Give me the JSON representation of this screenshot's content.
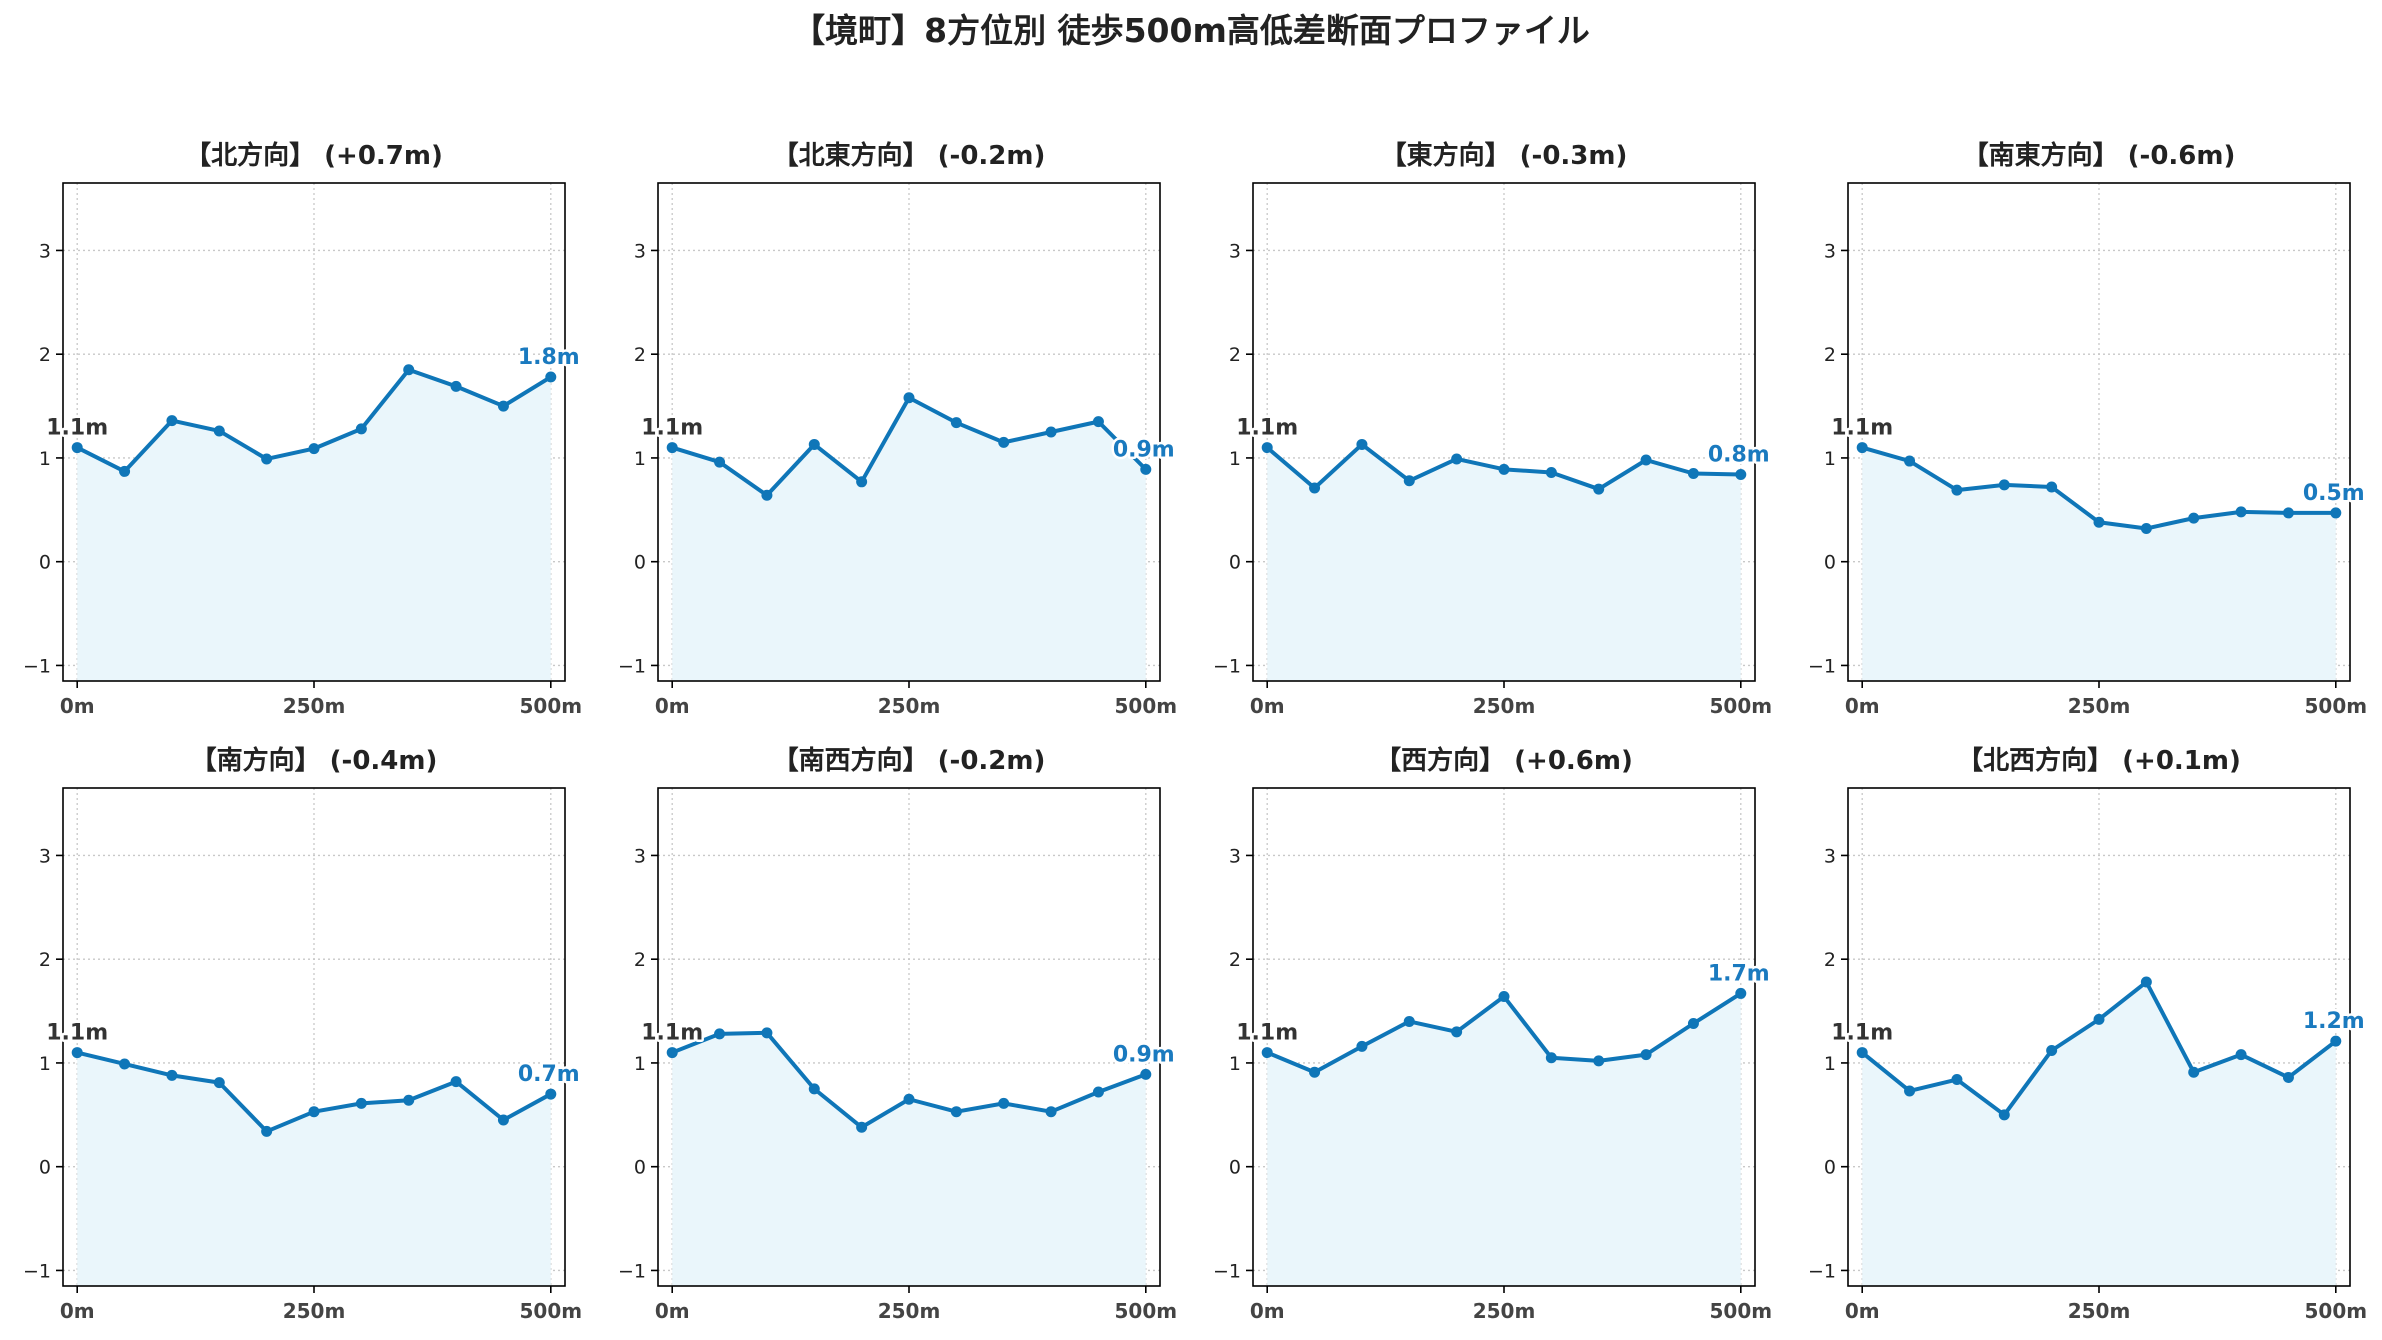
{
  "title": "【境町】8方位別 徒歩500m高低差断面プロファイル",
  "colors": {
    "line": "#0f76b8",
    "fill": "#eaf6fb",
    "end_label": "#1a7abf",
    "start_label": "#333333",
    "grid": "#c8c8c8",
    "axis": "#000000"
  },
  "chart_data": [
    {
      "type": "area",
      "title": "【北方向】 (+0.7m)",
      "x": [
        0,
        50,
        100,
        150,
        200,
        250,
        300,
        350,
        400,
        450,
        500
      ],
      "y": [
        1.1,
        0.87,
        1.36,
        1.26,
        0.99,
        1.09,
        1.28,
        1.85,
        1.69,
        1.5,
        1.78
      ],
      "xticks": [
        {
          "v": 0,
          "label": "0m"
        },
        {
          "v": 250,
          "label": "250m"
        },
        {
          "v": 500,
          "label": "500m"
        }
      ],
      "yticks": [
        {
          "v": -1,
          "label": "−1"
        },
        {
          "v": 0,
          "label": "0"
        },
        {
          "v": 1,
          "label": "1"
        },
        {
          "v": 2,
          "label": "2"
        },
        {
          "v": 3,
          "label": "3"
        }
      ],
      "xlim": [
        -15,
        515
      ],
      "ylim": [
        -1.15,
        3.65
      ],
      "grid": true,
      "start_label": "1.1m",
      "end_label": "1.8m"
    },
    {
      "type": "area",
      "title": "【北東方向】 (-0.2m)",
      "x": [
        0,
        50,
        100,
        150,
        200,
        250,
        300,
        350,
        400,
        450,
        500
      ],
      "y": [
        1.1,
        0.96,
        0.64,
        1.13,
        0.77,
        1.58,
        1.34,
        1.15,
        1.25,
        1.35,
        0.89
      ],
      "xticks": [
        {
          "v": 0,
          "label": "0m"
        },
        {
          "v": 250,
          "label": "250m"
        },
        {
          "v": 500,
          "label": "500m"
        }
      ],
      "yticks": [
        {
          "v": -1,
          "label": "−1"
        },
        {
          "v": 0,
          "label": "0"
        },
        {
          "v": 1,
          "label": "1"
        },
        {
          "v": 2,
          "label": "2"
        },
        {
          "v": 3,
          "label": "3"
        }
      ],
      "xlim": [
        -15,
        515
      ],
      "ylim": [
        -1.15,
        3.65
      ],
      "grid": true,
      "start_label": "1.1m",
      "end_label": "0.9m"
    },
    {
      "type": "area",
      "title": "【東方向】 (-0.3m)",
      "x": [
        0,
        50,
        100,
        150,
        200,
        250,
        300,
        350,
        400,
        450,
        500
      ],
      "y": [
        1.1,
        0.71,
        1.13,
        0.78,
        0.99,
        0.89,
        0.86,
        0.7,
        0.98,
        0.85,
        0.84
      ],
      "xticks": [
        {
          "v": 0,
          "label": "0m"
        },
        {
          "v": 250,
          "label": "250m"
        },
        {
          "v": 500,
          "label": "500m"
        }
      ],
      "yticks": [
        {
          "v": -1,
          "label": "−1"
        },
        {
          "v": 0,
          "label": "0"
        },
        {
          "v": 1,
          "label": "1"
        },
        {
          "v": 2,
          "label": "2"
        },
        {
          "v": 3,
          "label": "3"
        }
      ],
      "xlim": [
        -15,
        515
      ],
      "ylim": [
        -1.15,
        3.65
      ],
      "grid": true,
      "start_label": "1.1m",
      "end_label": "0.8m"
    },
    {
      "type": "area",
      "title": "【南東方向】 (-0.6m)",
      "x": [
        0,
        50,
        100,
        150,
        200,
        250,
        300,
        350,
        400,
        450,
        500
      ],
      "y": [
        1.1,
        0.97,
        0.69,
        0.74,
        0.72,
        0.38,
        0.32,
        0.42,
        0.48,
        0.47,
        0.47
      ],
      "xticks": [
        {
          "v": 0,
          "label": "0m"
        },
        {
          "v": 250,
          "label": "250m"
        },
        {
          "v": 500,
          "label": "500m"
        }
      ],
      "yticks": [
        {
          "v": -1,
          "label": "−1"
        },
        {
          "v": 0,
          "label": "0"
        },
        {
          "v": 1,
          "label": "1"
        },
        {
          "v": 2,
          "label": "2"
        },
        {
          "v": 3,
          "label": "3"
        }
      ],
      "xlim": [
        -15,
        515
      ],
      "ylim": [
        -1.15,
        3.65
      ],
      "grid": true,
      "start_label": "1.1m",
      "end_label": "0.5m"
    },
    {
      "type": "area",
      "title": "【南方向】 (-0.4m)",
      "x": [
        0,
        50,
        100,
        150,
        200,
        250,
        300,
        350,
        400,
        450,
        500
      ],
      "y": [
        1.1,
        0.99,
        0.88,
        0.81,
        0.34,
        0.53,
        0.61,
        0.64,
        0.82,
        0.45,
        0.7
      ],
      "xticks": [
        {
          "v": 0,
          "label": "0m"
        },
        {
          "v": 250,
          "label": "250m"
        },
        {
          "v": 500,
          "label": "500m"
        }
      ],
      "yticks": [
        {
          "v": -1,
          "label": "−1"
        },
        {
          "v": 0,
          "label": "0"
        },
        {
          "v": 1,
          "label": "1"
        },
        {
          "v": 2,
          "label": "2"
        },
        {
          "v": 3,
          "label": "3"
        }
      ],
      "xlim": [
        -15,
        515
      ],
      "ylim": [
        -1.15,
        3.65
      ],
      "grid": true,
      "start_label": "1.1m",
      "end_label": "0.7m"
    },
    {
      "type": "area",
      "title": "【南西方向】 (-0.2m)",
      "x": [
        0,
        50,
        100,
        150,
        200,
        250,
        300,
        350,
        400,
        450,
        500
      ],
      "y": [
        1.1,
        1.28,
        1.29,
        0.75,
        0.38,
        0.65,
        0.53,
        0.61,
        0.53,
        0.72,
        0.89
      ],
      "xticks": [
        {
          "v": 0,
          "label": "0m"
        },
        {
          "v": 250,
          "label": "250m"
        },
        {
          "v": 500,
          "label": "500m"
        }
      ],
      "yticks": [
        {
          "v": -1,
          "label": "−1"
        },
        {
          "v": 0,
          "label": "0"
        },
        {
          "v": 1,
          "label": "1"
        },
        {
          "v": 2,
          "label": "2"
        },
        {
          "v": 3,
          "label": "3"
        }
      ],
      "xlim": [
        -15,
        515
      ],
      "ylim": [
        -1.15,
        3.65
      ],
      "grid": true,
      "start_label": "1.1m",
      "end_label": "0.9m"
    },
    {
      "type": "area",
      "title": "【西方向】 (+0.6m)",
      "x": [
        0,
        50,
        100,
        150,
        200,
        250,
        300,
        350,
        400,
        450,
        500
      ],
      "y": [
        1.1,
        0.91,
        1.16,
        1.4,
        1.3,
        1.64,
        1.05,
        1.02,
        1.08,
        1.38,
        1.67
      ],
      "xticks": [
        {
          "v": 0,
          "label": "0m"
        },
        {
          "v": 250,
          "label": "250m"
        },
        {
          "v": 500,
          "label": "500m"
        }
      ],
      "yticks": [
        {
          "v": -1,
          "label": "−1"
        },
        {
          "v": 0,
          "label": "0"
        },
        {
          "v": 1,
          "label": "1"
        },
        {
          "v": 2,
          "label": "2"
        },
        {
          "v": 3,
          "label": "3"
        }
      ],
      "xlim": [
        -15,
        515
      ],
      "ylim": [
        -1.15,
        3.65
      ],
      "grid": true,
      "start_label": "1.1m",
      "end_label": "1.7m"
    },
    {
      "type": "area",
      "title": "【北西方向】 (+0.1m)",
      "x": [
        0,
        50,
        100,
        150,
        200,
        250,
        300,
        350,
        400,
        450,
        500
      ],
      "y": [
        1.1,
        0.73,
        0.84,
        0.5,
        1.12,
        1.42,
        1.78,
        0.91,
        1.08,
        0.86,
        1.21
      ],
      "xticks": [
        {
          "v": 0,
          "label": "0m"
        },
        {
          "v": 250,
          "label": "250m"
        },
        {
          "v": 500,
          "label": "500m"
        }
      ],
      "yticks": [
        {
          "v": -1,
          "label": "−1"
        },
        {
          "v": 0,
          "label": "0"
        },
        {
          "v": 1,
          "label": "1"
        },
        {
          "v": 2,
          "label": "2"
        },
        {
          "v": 3,
          "label": "3"
        }
      ],
      "xlim": [
        -15,
        515
      ],
      "ylim": [
        -1.15,
        3.65
      ],
      "grid": true,
      "start_label": "1.1m",
      "end_label": "1.2m"
    }
  ]
}
